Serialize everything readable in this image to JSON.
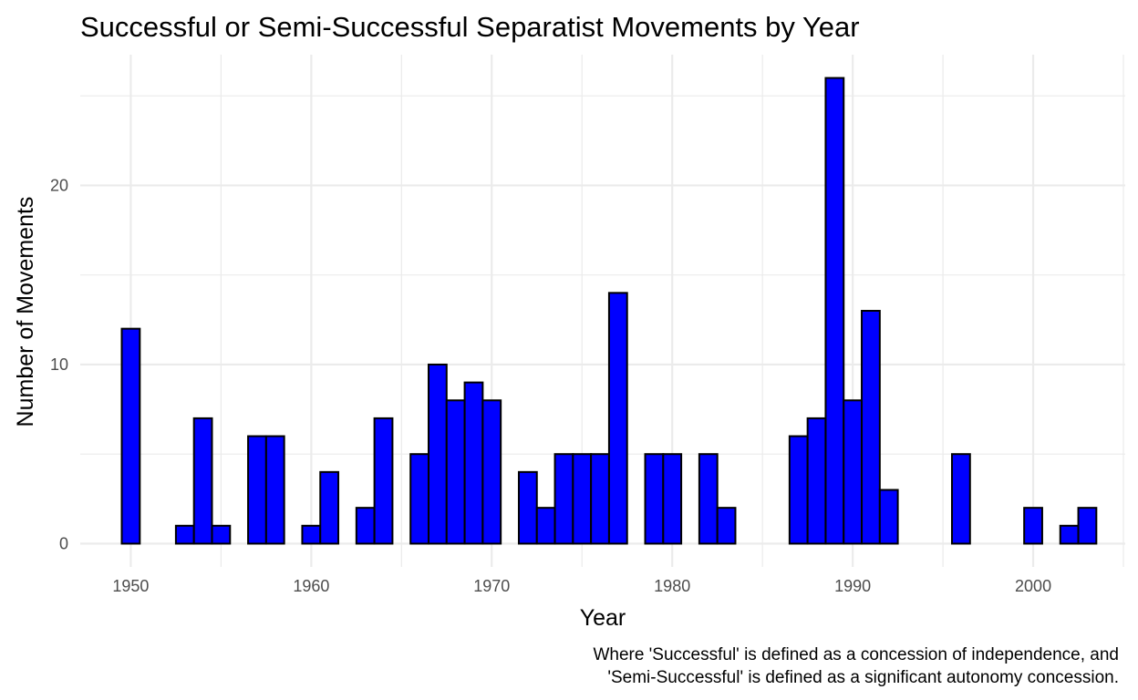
{
  "chart_data": {
    "type": "bar",
    "title": "Successful or Semi-Successful Separatist Movements by Year",
    "xlabel": "Year",
    "ylabel": "Number of Movements",
    "caption": [
      "Where 'Successful' is defined as a concession of independence, and",
      "'Semi-Successful' is defined as a significant autonomy concession."
    ],
    "xlim": [
      1947.2,
      2005.1
    ],
    "ylim": [
      -1.3,
      27.3
    ],
    "x_ticks": [
      1950,
      1960,
      1970,
      1980,
      1990,
      2000
    ],
    "y_ticks": [
      0,
      10,
      20
    ],
    "grid": true,
    "legend": "none",
    "bar_color": "#0000ff",
    "bar_outline": "#000000",
    "x": [
      1950,
      1951,
      1952,
      1953,
      1954,
      1955,
      1956,
      1957,
      1958,
      1959,
      1960,
      1961,
      1962,
      1963,
      1964,
      1965,
      1966,
      1967,
      1968,
      1969,
      1970,
      1971,
      1972,
      1973,
      1974,
      1975,
      1976,
      1977,
      1978,
      1979,
      1980,
      1981,
      1982,
      1983,
      1984,
      1985,
      1986,
      1987,
      1988,
      1989,
      1990,
      1991,
      1992,
      1993,
      1994,
      1995,
      1996,
      1997,
      1998,
      1999,
      2000,
      2001,
      2002,
      2003
    ],
    "values": [
      12,
      0,
      0,
      1,
      7,
      1,
      0,
      6,
      6,
      0,
      1,
      4,
      0,
      2,
      7,
      0,
      5,
      10,
      8,
      9,
      8,
      0,
      4,
      2,
      5,
      5,
      5,
      14,
      0,
      5,
      5,
      0,
      5,
      2,
      0,
      0,
      0,
      6,
      7,
      26,
      8,
      13,
      3,
      0,
      0,
      0,
      5,
      0,
      0,
      0,
      2,
      0,
      1,
      2
    ]
  }
}
